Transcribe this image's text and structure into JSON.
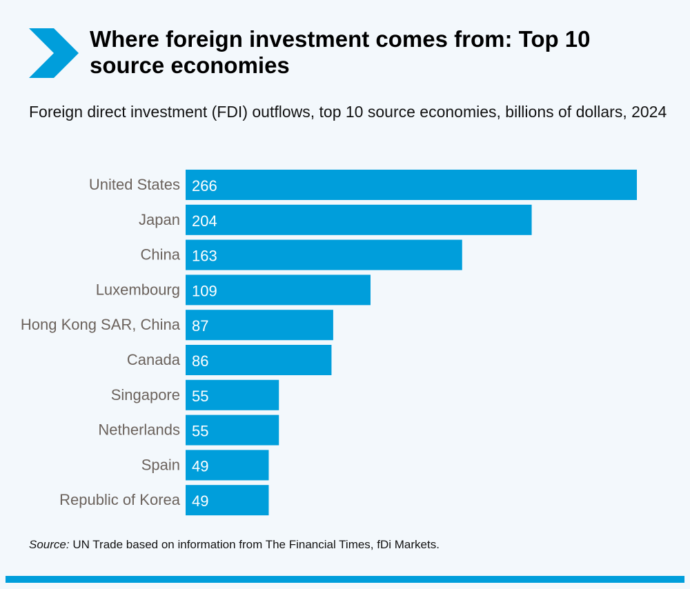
{
  "header": {
    "title": "Where foreign investment comes from: Top 10 source economies",
    "icon": "chevron-right-icon"
  },
  "chart_data": {
    "type": "bar",
    "orientation": "horizontal",
    "title": "Where foreign investment comes from: Top 10 source economies",
    "subtitle": "Foreign direct investment (FDI) outflows, top 10 source economies, billions of dollars, 2024",
    "xlabel": "",
    "ylabel": "",
    "xlim": [
      0,
      266
    ],
    "grid": false,
    "legend": "none",
    "categories": [
      "United States",
      "Japan",
      "China",
      "Luxembourg",
      "Hong Kong SAR, China",
      "Canada",
      "Singapore",
      "Netherlands",
      "Spain",
      "Republic of Korea"
    ],
    "values": [
      266,
      204,
      163,
      109,
      87,
      86,
      55,
      55,
      49,
      49
    ],
    "data_labels": [
      "266",
      "204",
      "163",
      "109",
      "87",
      "86",
      "55",
      "55",
      "49",
      "49"
    ],
    "bar_color": "#009edb"
  },
  "footer": {
    "source_label": "Source:",
    "source_text": " UN Trade based on information from The Financial Times, fDi Markets."
  },
  "colors": {
    "accent": "#009edb",
    "background": "#f3f8fc",
    "category_label": "#6b625c"
  }
}
